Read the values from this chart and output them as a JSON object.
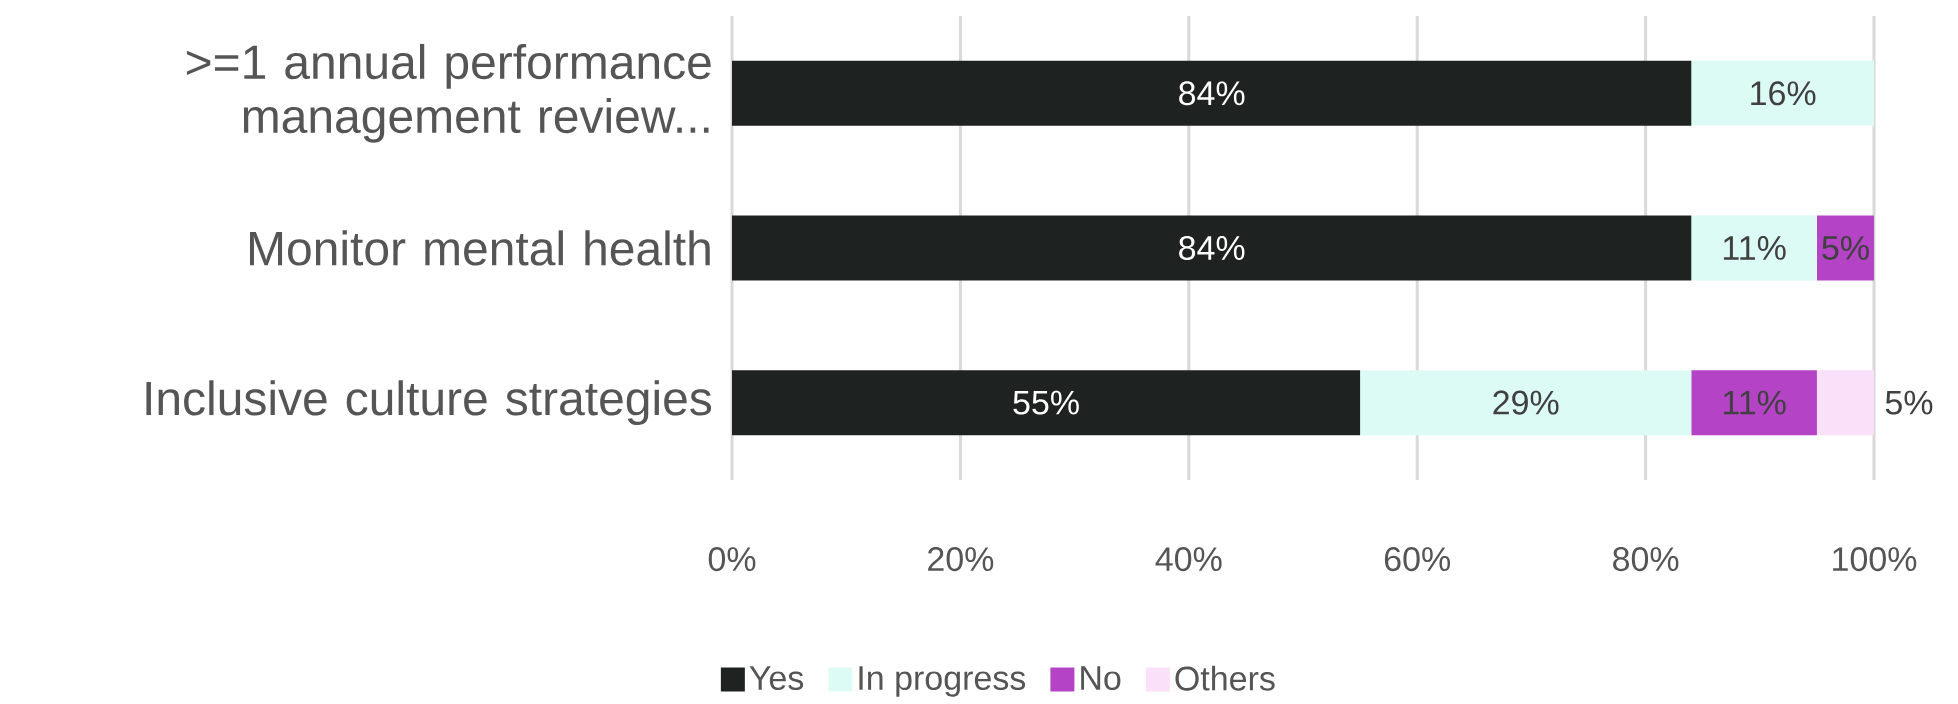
{
  "chart_data": {
    "type": "bar",
    "orientation": "horizontal",
    "stacked": true,
    "categories": [
      ">=1 annual performance management review...",
      "Monitor mental health",
      "Inclusive culture strategies"
    ],
    "series": [
      {
        "name": "Yes",
        "color": "#1e2220",
        "values": [
          84,
          84,
          55
        ],
        "value_labels": [
          "84%",
          "84%",
          "55%"
        ]
      },
      {
        "name": "In progress",
        "color": "#dcfbf5",
        "values": [
          16,
          11,
          29
        ],
        "value_labels": [
          "16%",
          "11%",
          "29%"
        ]
      },
      {
        "name": "No",
        "color": "#b543c6",
        "values": [
          0,
          5,
          11
        ],
        "value_labels": [
          null,
          "5%",
          "11%"
        ]
      },
      {
        "name": "Others",
        "color": "#fbe0f9",
        "values": [
          0,
          0,
          5
        ],
        "value_labels": [
          null,
          null,
          "5%"
        ]
      }
    ],
    "xlim": [
      0,
      100
    ],
    "xticks": [
      {
        "value": 0,
        "label": "0%"
      },
      {
        "value": 20,
        "label": "20%"
      },
      {
        "value": 40,
        "label": "40%"
      },
      {
        "value": 60,
        "label": "60%"
      },
      {
        "value": 80,
        "label": "80%"
      },
      {
        "value": 100,
        "label": "100%"
      }
    ],
    "grid": "x",
    "legend": "bottom"
  }
}
